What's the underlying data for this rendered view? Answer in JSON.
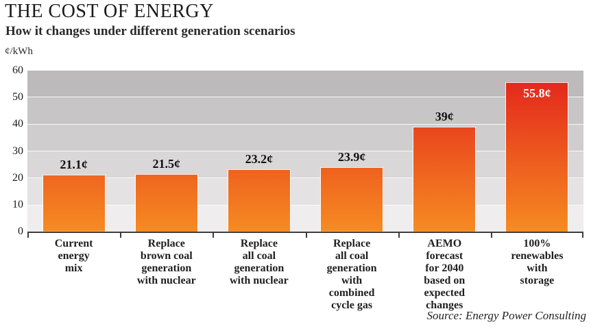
{
  "header": {
    "title": "THE COST OF ENERGY",
    "subtitle": "How it changes under different generation scenarios",
    "unit_label": "¢/kWh"
  },
  "source": "Source: Energy Power Consulting",
  "colors": {
    "bar_gradient_top": "#e2211c",
    "bar_gradient_bottom": "#f68b21",
    "bar_outline": "rgba(255,255,255,0.85)",
    "axis": "#3d3d3d",
    "value_label": "#111111",
    "value_label_inside": "#ffffff",
    "band_colors_top_to_bottom": [
      "#bcbaba",
      "#c7c5c5",
      "#cfcdcd",
      "#d9d7d7",
      "#e4e2e2",
      "#efeded"
    ]
  },
  "chart_data": {
    "type": "bar",
    "title": "THE COST OF ENERGY",
    "subtitle": "How it changes under different generation scenarios",
    "ylabel": "¢/kWh",
    "xlabel": "",
    "ylim": [
      0,
      60
    ],
    "yticks": [
      0,
      10,
      20,
      30,
      40,
      50,
      60
    ],
    "grid": "horizontal shaded bands every 10 units, white separators",
    "legend": "none",
    "categories": [
      "Current energy mix",
      "Replace brown coal generation with nuclear",
      "Replace all coal generation with nuclear",
      "Replace all coal generation with combined cycle gas",
      "AEMO forecast for 2040 based on expected changes",
      "100% renewables with storage"
    ],
    "category_label_lines": [
      [
        "Current",
        "energy",
        "mix"
      ],
      [
        "Replace",
        "brown coal",
        "generation",
        "with nuclear"
      ],
      [
        "Replace",
        "all coal",
        "generation",
        "with nuclear"
      ],
      [
        "Replace",
        "all coal",
        "generation",
        "with",
        "combined",
        "cycle gas"
      ],
      [
        "AEMO",
        "forecast",
        "for 2040",
        "based on",
        "expected",
        "changes"
      ],
      [
        "100%",
        "renewables",
        "with",
        "storage"
      ]
    ],
    "values": [
      21.1,
      21.5,
      23.2,
      23.9,
      39,
      55.8
    ],
    "value_labels": [
      "21.1¢",
      "21.5¢",
      "23.2¢",
      "23.9¢",
      "39¢",
      "55.8¢"
    ],
    "value_label_inside": [
      false,
      false,
      false,
      false,
      false,
      true
    ]
  }
}
